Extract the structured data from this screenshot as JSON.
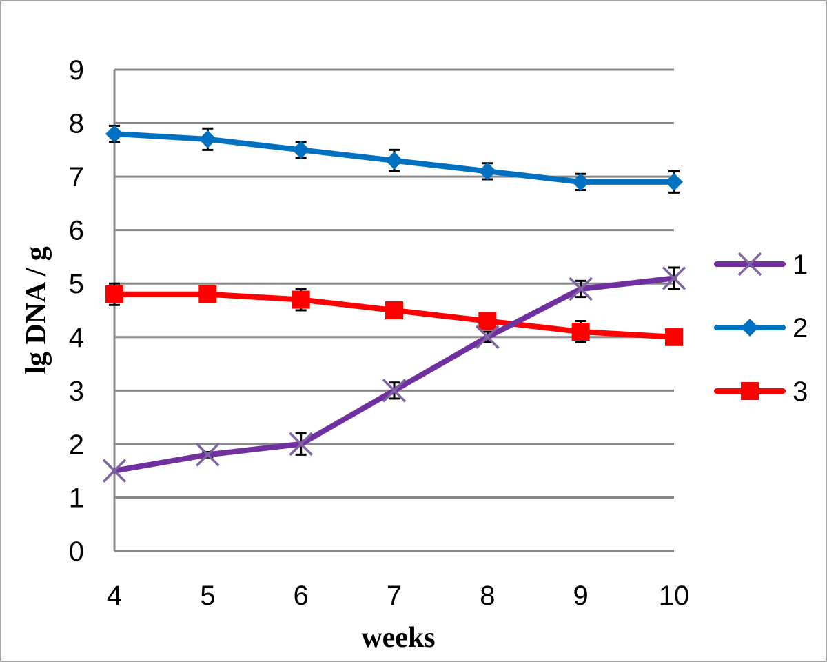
{
  "chart_data": {
    "type": "line",
    "title": "",
    "xlabel": "weeks",
    "ylabel": "lg DNA / g",
    "x": [
      4,
      5,
      6,
      7,
      8,
      9,
      10
    ],
    "xlim": [
      4,
      10
    ],
    "ylim": [
      0,
      9
    ],
    "y_ticks": [
      0,
      1,
      2,
      3,
      4,
      5,
      6,
      7,
      8,
      9
    ],
    "x_ticks": [
      4,
      5,
      6,
      7,
      8,
      9,
      10
    ],
    "grid": "horizontal",
    "legend_position": "right",
    "series": [
      {
        "name": "1",
        "color": "#7030a0",
        "marker": "x",
        "marker_color": "#8064a2",
        "values": [
          1.5,
          1.8,
          2.0,
          3.0,
          4.0,
          4.9,
          5.1
        ],
        "error": [
          0,
          0.05,
          0.2,
          0.15,
          0.1,
          0.15,
          0.2
        ]
      },
      {
        "name": "2",
        "color": "#0070c0",
        "marker": "diamond",
        "marker_color": "#0070c0",
        "values": [
          7.8,
          7.7,
          7.5,
          7.3,
          7.1,
          6.9,
          6.9
        ],
        "error": [
          0.15,
          0.2,
          0.15,
          0.2,
          0.15,
          0.15,
          0.2
        ]
      },
      {
        "name": "3",
        "color": "#ff0000",
        "marker": "square",
        "marker_color": "#ff0000",
        "values": [
          4.8,
          4.8,
          4.7,
          4.5,
          4.3,
          4.1,
          4.0
        ],
        "error": [
          0.2,
          0.1,
          0.2,
          0.1,
          0.1,
          0.2,
          0
        ]
      }
    ]
  }
}
